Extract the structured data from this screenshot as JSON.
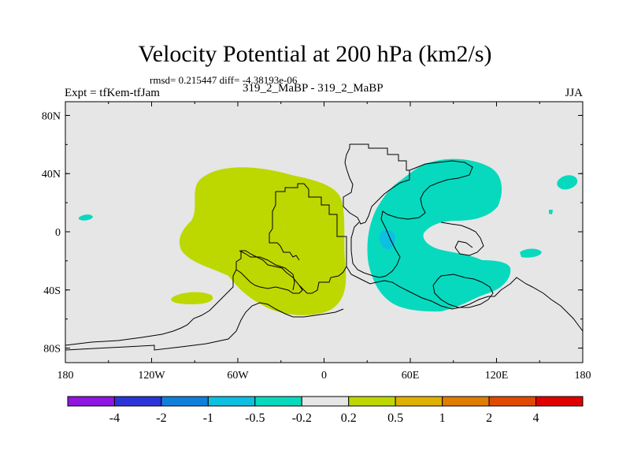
{
  "title": "Velocity Potential at 200 hPa (km2/s)",
  "stats": "rmsd= 0.215447  diff= -4.38193e-06",
  "left_label": "Expt = tfKem-tfJam",
  "center_label": "319_2_MaBP - 319_2_MaBP",
  "right_label": "JJA",
  "map": {
    "background_color": "#e6e6e6",
    "lat_ticks": [
      {
        "label": "80N",
        "value": 80
      },
      {
        "label": "40N",
        "value": 40
      },
      {
        "label": "0",
        "value": 0
      },
      {
        "label": "40S",
        "value": -40
      },
      {
        "label": "80S",
        "value": -80
      }
    ],
    "lon_ticks": [
      {
        "label": "180",
        "value": -180
      },
      {
        "label": "120W",
        "value": -120
      },
      {
        "label": "60W",
        "value": -60
      },
      {
        "label": "0",
        "value": 0
      },
      {
        "label": "60E",
        "value": 60
      },
      {
        "label": "120E",
        "value": 120
      },
      {
        "label": "180",
        "value": 180
      }
    ]
  },
  "colorbar": {
    "colors": [
      "#8f17e0",
      "#2a35d8",
      "#0f7fdc",
      "#0dbfe0",
      "#07d9be",
      "#e6e6e6",
      "#bcd800",
      "#e0b000",
      "#e07c00",
      "#e04a00",
      "#e00000"
    ],
    "labels": [
      "-4",
      "-2",
      "-1",
      "-0.5",
      "-0.2",
      "0.2",
      "0.5",
      "1",
      "2",
      "4"
    ]
  }
}
